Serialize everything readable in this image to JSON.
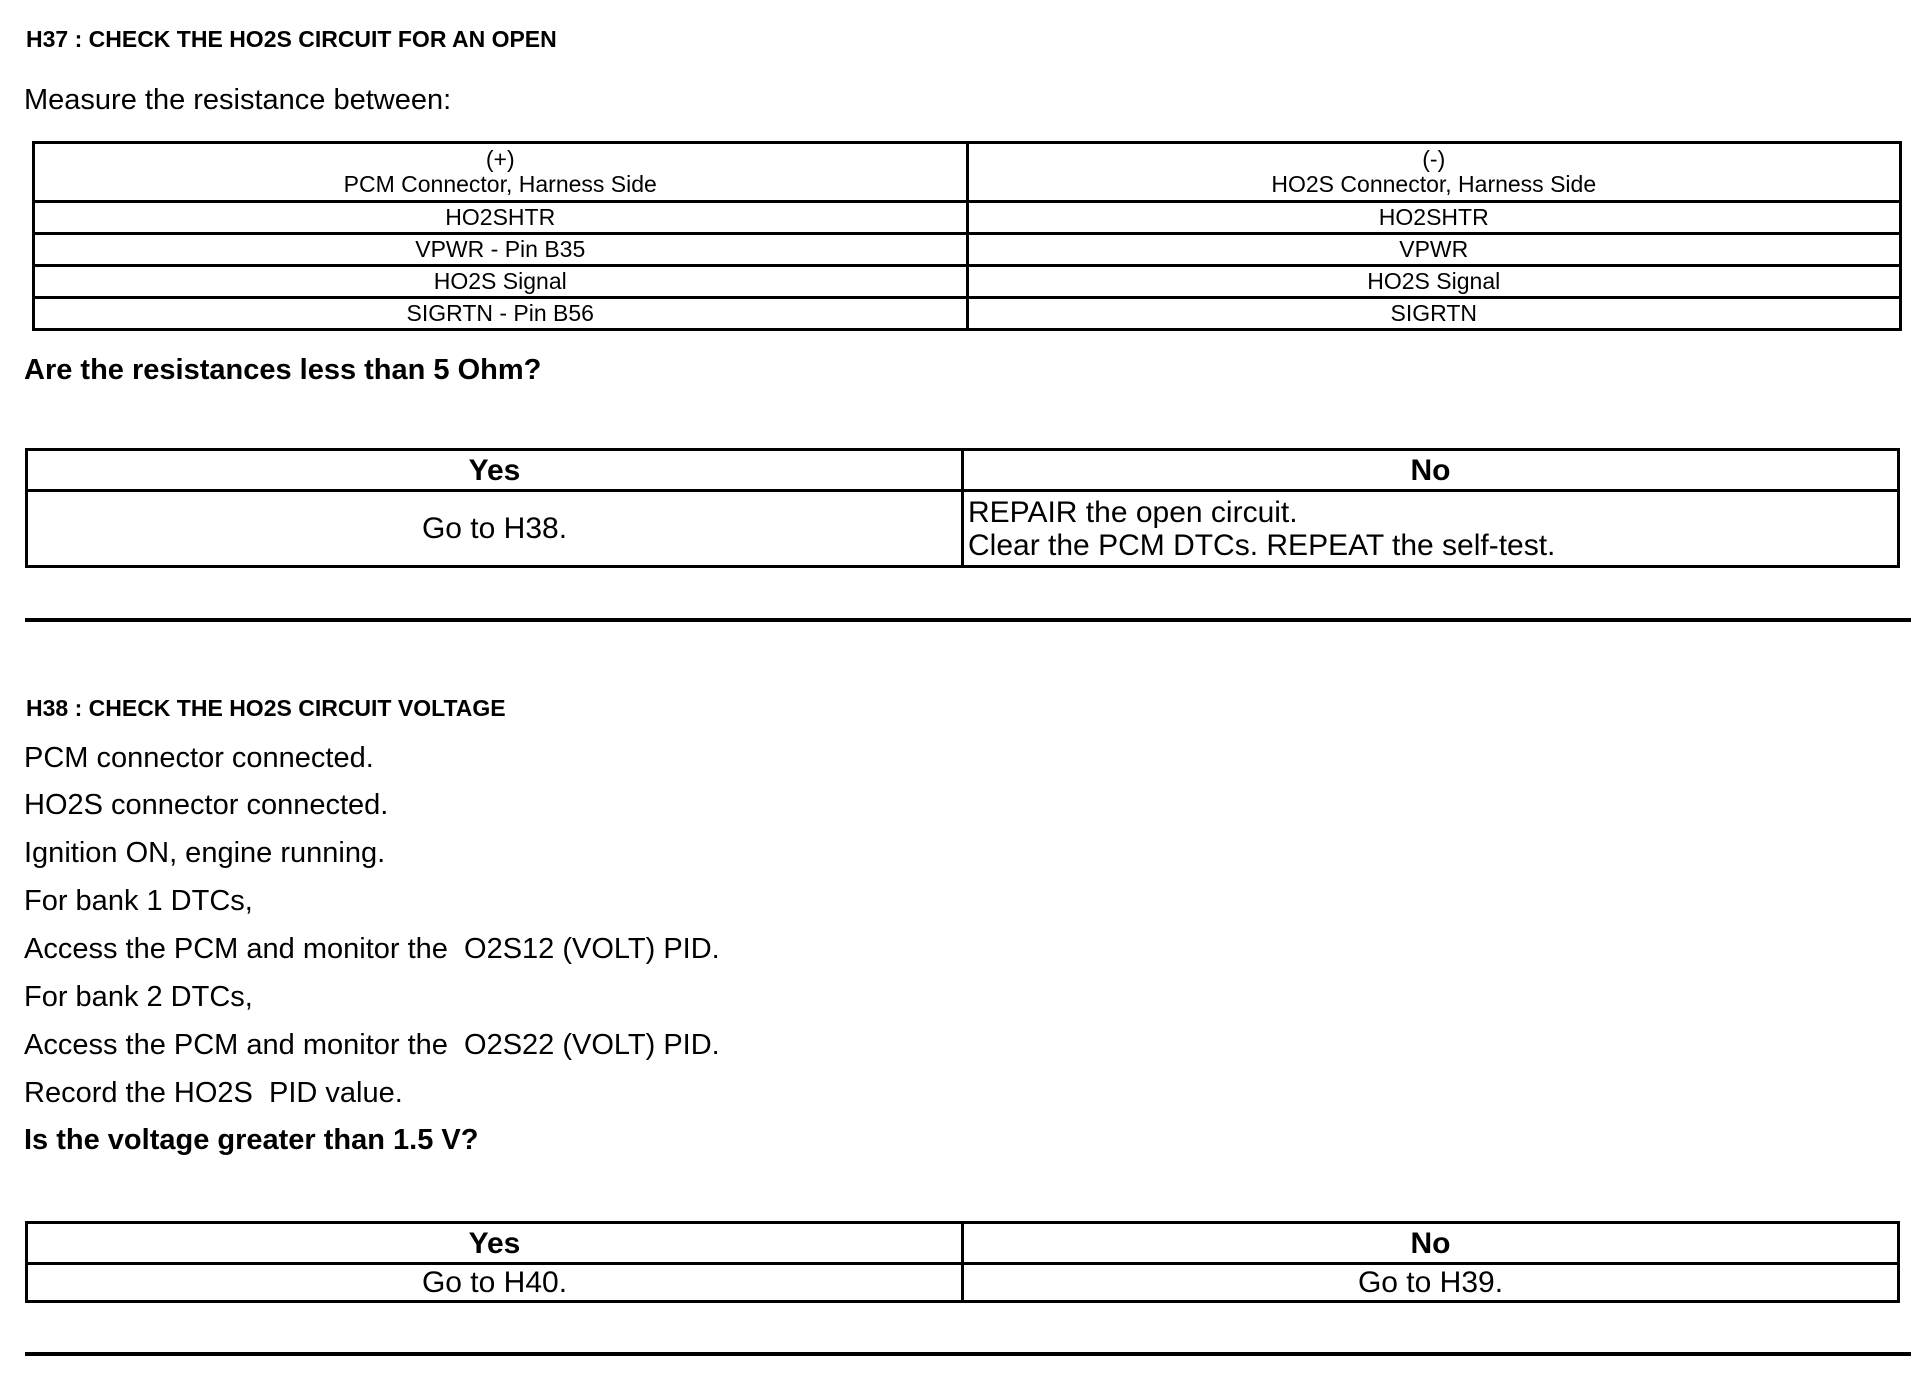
{
  "h37": {
    "title": "H37 : CHECK THE HO2S CIRCUIT FOR AN OPEN",
    "instruction": "Measure the resistance between:",
    "table": {
      "headers": [
        {
          "sign": "(+)",
          "label": "PCM Connector, Harness Side"
        },
        {
          "sign": "(-)",
          "label": "HO2S Connector, Harness Side"
        }
      ],
      "rows": [
        [
          "HO2SHTR",
          "HO2SHTR"
        ],
        [
          "VPWR - Pin B35",
          "VPWR"
        ],
        [
          "HO2S Signal",
          "HO2S Signal"
        ],
        [
          "SIGRTN - Pin B56",
          "SIGRTN"
        ]
      ]
    },
    "question": "Are the resistances less than 5 Ohm?",
    "answers": {
      "yes_label": "Yes",
      "no_label": "No",
      "yes_action": "Go to H38.",
      "no_action_lines": [
        "REPAIR the open circuit.",
        "Clear the PCM DTCs. REPEAT the self-test."
      ]
    }
  },
  "h38": {
    "title": "H38 : CHECK THE HO2S CIRCUIT VOLTAGE",
    "lines": [
      "PCM connector connected.",
      "HO2S connector connected.",
      "Ignition ON, engine running.",
      "For bank 1 DTCs,",
      "Access the PCM and monitor the  O2S12 (VOLT) PID.",
      "For bank 2 DTCs,",
      "Access the PCM and monitor the  O2S22 (VOLT) PID.",
      "Record the HO2S  PID value."
    ],
    "question": "Is the voltage greater than 1.5 V?",
    "answers": {
      "yes_label": "Yes",
      "no_label": "No",
      "yes_action": "Go to H40.",
      "no_action": "Go to H39."
    }
  }
}
